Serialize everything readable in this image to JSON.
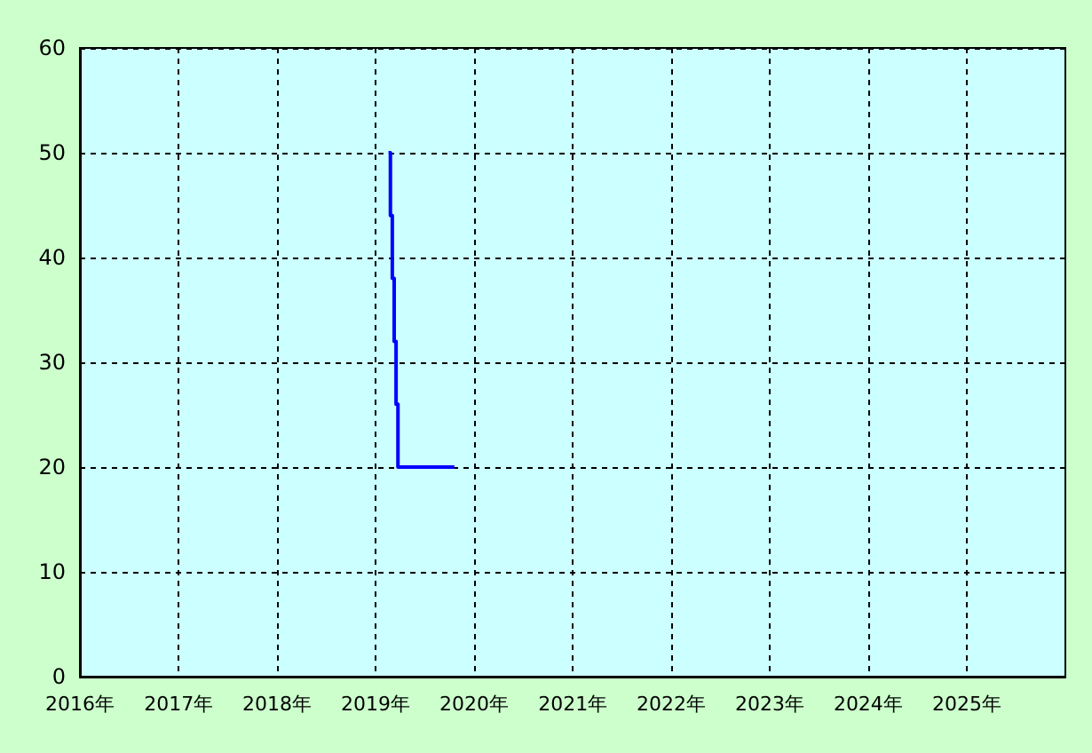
{
  "chart_data": {
    "type": "step",
    "x": [
      "2019-02-18",
      "2019-02-25",
      "2019-03-04",
      "2019-03-11",
      "2019-03-18",
      "2019-03-25",
      "2019-10-20"
    ],
    "series": [
      {
        "color": "#0000ff",
        "values": [
          50,
          44,
          38,
          32,
          26,
          20,
          20
        ]
      }
    ],
    "xlim": [
      "2016-01-01",
      "2026-01-01"
    ],
    "xticks": [
      {
        "value": "2016",
        "label": "2016年"
      },
      {
        "value": "2017",
        "label": "2017年"
      },
      {
        "value": "2018",
        "label": "2018年"
      },
      {
        "value": "2019",
        "label": "2019年"
      },
      {
        "value": "2020",
        "label": "2020年"
      },
      {
        "value": "2021",
        "label": "2021年"
      },
      {
        "value": "2022",
        "label": "2022年"
      },
      {
        "value": "2023",
        "label": "2023年"
      },
      {
        "value": "2024",
        "label": "2024年"
      },
      {
        "value": "2025",
        "label": "2025年"
      }
    ],
    "ylim": [
      0,
      60
    ],
    "yticks": [
      0,
      10,
      20,
      30,
      40,
      50,
      60
    ],
    "grid": true,
    "marker": "none",
    "line_style": "solid"
  }
}
